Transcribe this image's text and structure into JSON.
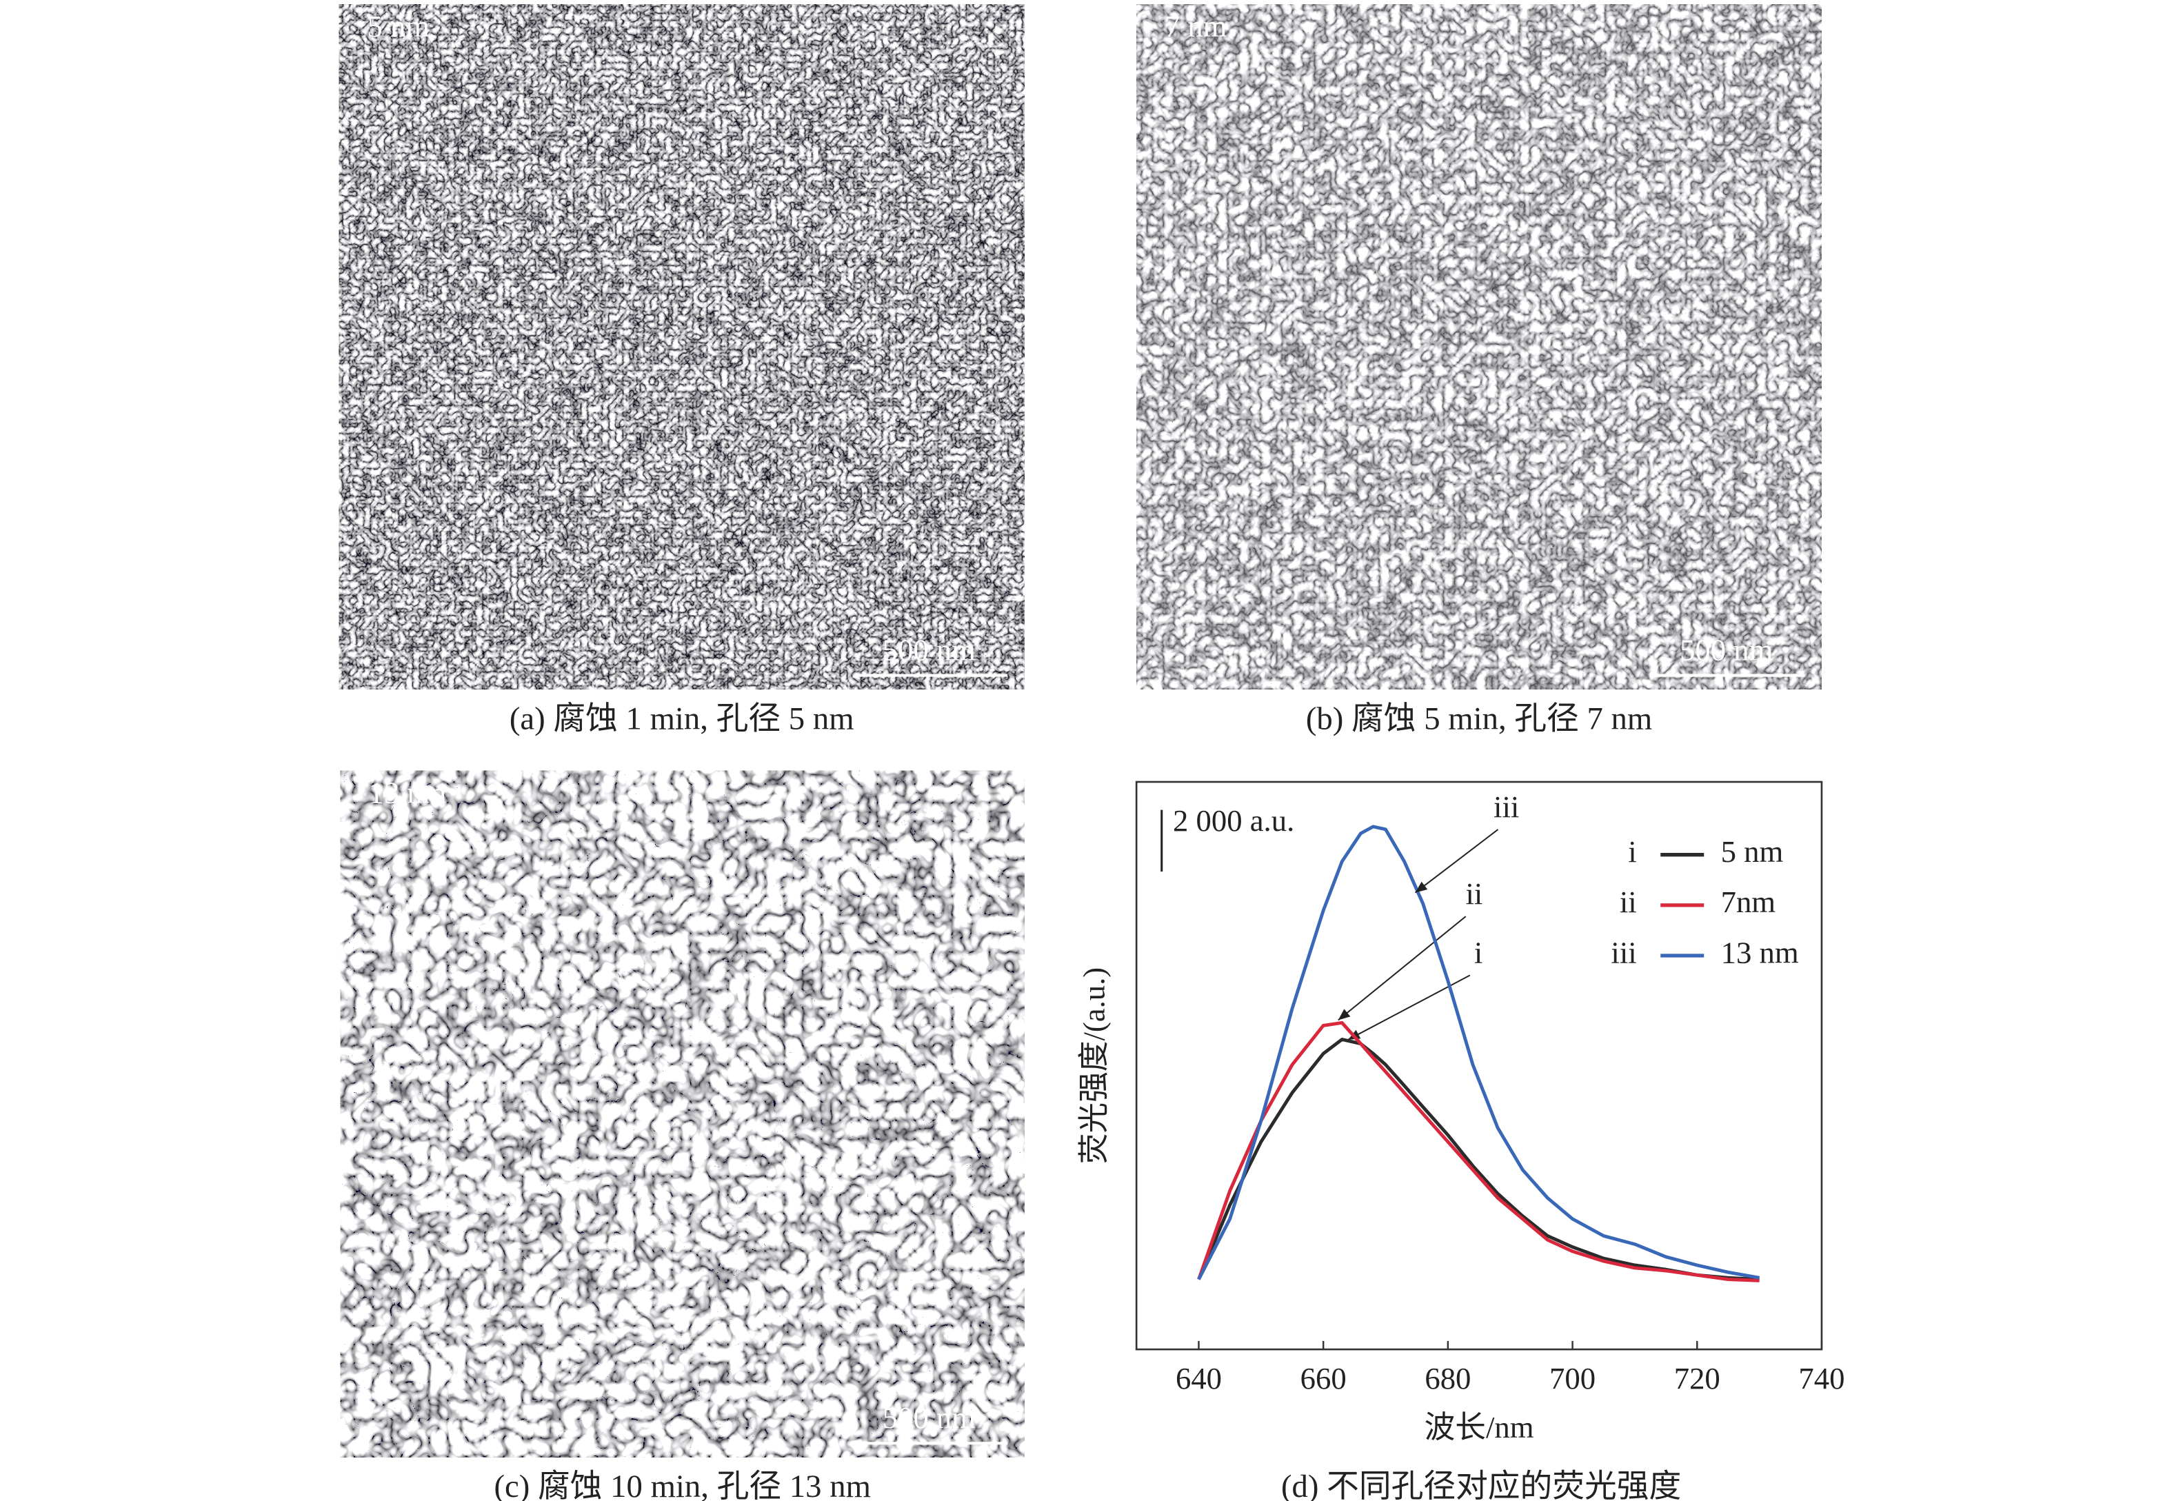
{
  "panels": [
    {
      "label": "5 nm",
      "scale_bar": "500 nm",
      "caption": "(a) 腐蚀 1 min, 孔径 5 nm"
    },
    {
      "label": "7 nm",
      "scale_bar": "500 nm",
      "caption": "(b) 腐蚀 5 min, 孔径 7 nm"
    },
    {
      "label": "13 nm",
      "scale_bar": "500 nm",
      "caption": "(c) 腐蚀 10 min, 孔径 13 nm"
    }
  ],
  "chart_data": {
    "type": "line",
    "title": "(d) 不同孔径对应的荧光强度",
    "x_label": "波长/nm",
    "y_label": "荧光强度/(a.u.)",
    "x": [
      640,
      645,
      650,
      655,
      660,
      663,
      666,
      668,
      670,
      673,
      676,
      680,
      684,
      688,
      692,
      696,
      700,
      705,
      710,
      715,
      720,
      725,
      730
    ],
    "series": [
      {
        "label": "i",
        "name": "5 nm",
        "color": "#2b2b2b",
        "values": [
          2270,
          4680,
          6730,
          8320,
          9590,
          10050,
          9910,
          9590,
          9230,
          8550,
          7860,
          6950,
          5950,
          5050,
          4320,
          3680,
          3320,
          2950,
          2730,
          2590,
          2410,
          2320,
          2270
        ]
      },
      {
        "label": "ii",
        "name": "7nm",
        "color": "#d9283c",
        "values": [
          2270,
          5140,
          7410,
          9230,
          10500,
          10590,
          9910,
          9450,
          9000,
          8320,
          7640,
          6730,
          5820,
          4910,
          4230,
          3550,
          3180,
          2860,
          2640,
          2550,
          2410,
          2270,
          2230
        ]
      },
      {
        "label": "iii",
        "name": "13 nm",
        "color": "#3a68b8",
        "values": [
          2270,
          4230,
          7410,
          11050,
          14230,
          15820,
          16730,
          16950,
          16860,
          15820,
          14450,
          11950,
          9230,
          7180,
          5820,
          4910,
          4230,
          3680,
          3410,
          3000,
          2730,
          2500,
          2320
        ]
      }
    ],
    "xlim": [
      630,
      740
    ],
    "xticks": [
      640,
      660,
      680,
      700,
      720,
      740
    ],
    "ylim": [
      0,
      18400
    ],
    "scale_bar": {
      "value": 2000,
      "label": "2 000 a.u."
    }
  }
}
